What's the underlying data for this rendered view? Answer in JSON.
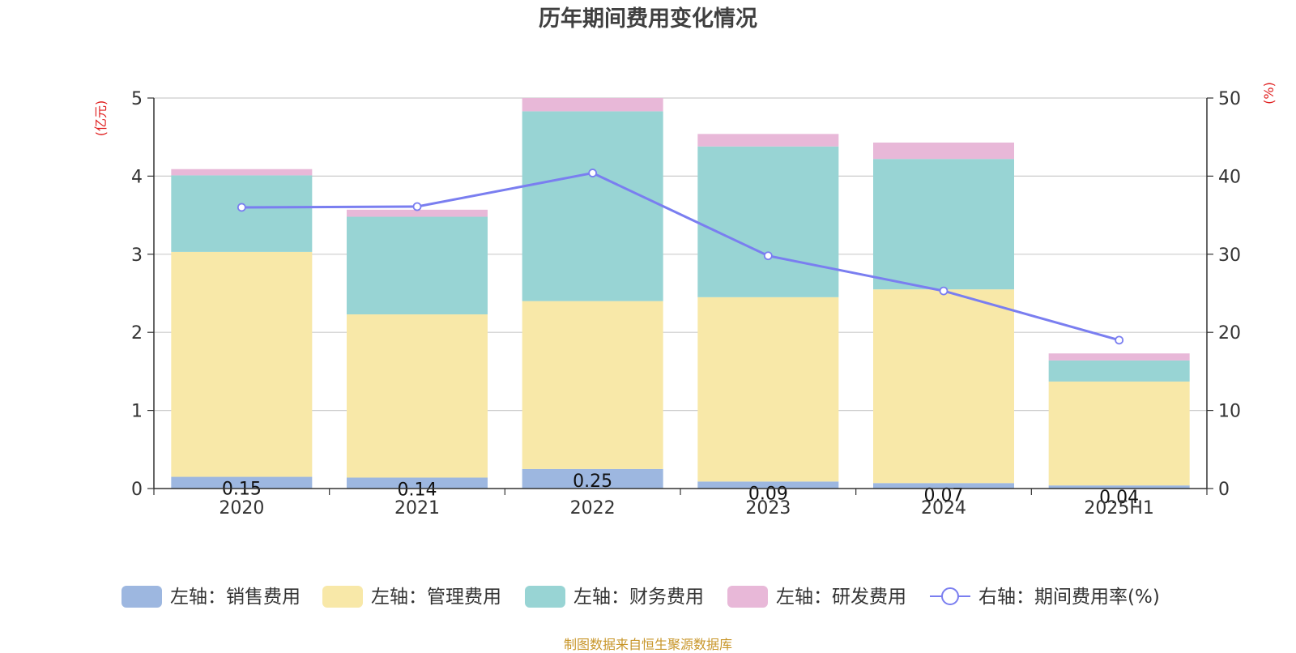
{
  "chart_data": {
    "type": "bar",
    "stacked": true,
    "title": "历年期间费用变化情况",
    "categories": [
      "2020",
      "2021",
      "2022",
      "2023",
      "2024",
      "2025H1"
    ],
    "y_left": {
      "label": "(亿元)",
      "ylim": [
        0,
        5
      ],
      "ticks": [
        0,
        1,
        2,
        3,
        4,
        5
      ]
    },
    "y_right": {
      "label": "(%)",
      "ylim": [
        0,
        50
      ],
      "ticks": [
        0,
        10,
        20,
        30,
        40,
        50
      ]
    },
    "grid": true,
    "legend_position": "bottom",
    "series": [
      {
        "name": "左轴：销售费用",
        "axis": "left",
        "type": "bar",
        "color": "#9db7e0",
        "values": [
          0.15,
          0.14,
          0.25,
          0.09,
          0.07,
          0.04
        ],
        "labels": [
          "0.15",
          "0.14",
          "0.25",
          "0.09",
          "0.07",
          "0.04"
        ]
      },
      {
        "name": "左轴：管理费用",
        "axis": "left",
        "type": "bar",
        "color": "#f8e8a8",
        "values": [
          2.88,
          2.09,
          2.15,
          2.36,
          2.48,
          1.33
        ]
      },
      {
        "name": "左轴：财务费用",
        "axis": "left",
        "type": "bar",
        "color": "#98d4d4",
        "values": [
          0.98,
          1.25,
          2.43,
          1.93,
          1.67,
          0.27
        ]
      },
      {
        "name": "左轴：研发费用",
        "axis": "left",
        "type": "bar",
        "color": "#e8b8d8",
        "values": [
          0.08,
          0.09,
          0.17,
          0.16,
          0.21,
          0.09
        ]
      },
      {
        "name": "右轴：期间费用率(%)",
        "axis": "right",
        "type": "line",
        "color": "#7a7ef0",
        "values": [
          36.0,
          36.1,
          40.4,
          29.8,
          25.3,
          19.0
        ]
      }
    ]
  },
  "footer": "制图数据来自恒生聚源数据库"
}
